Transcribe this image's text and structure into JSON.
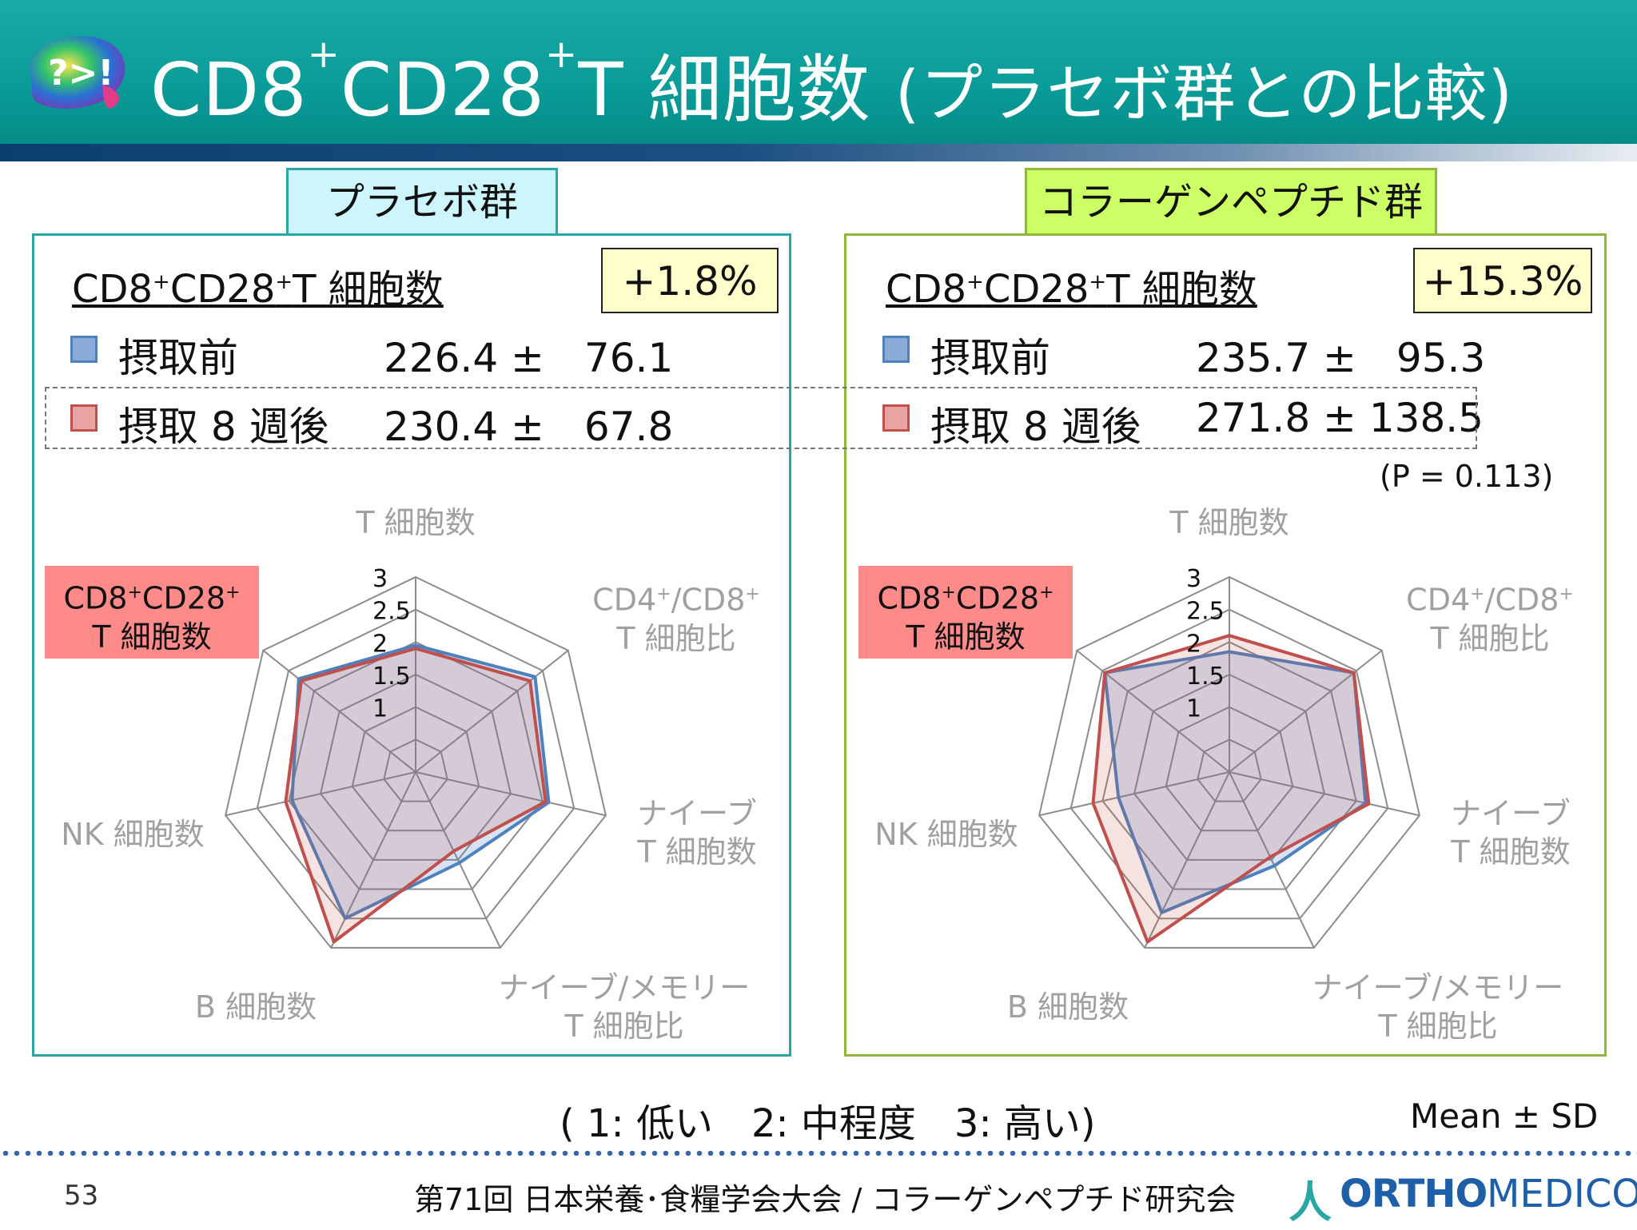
{
  "slide": {
    "title_main": "CD8",
    "title_sup1": "+",
    "title_mid": "CD28",
    "title_sup2": "+",
    "title_rest": "T 細胞数 ",
    "title_paren": "(プラセボ群との比較)",
    "logo_text": "?>!",
    "page_number": "53",
    "footer": "第71回 日本栄養･食糧学会大会 / コラーゲンペプチド研究会",
    "brand_a": "人",
    "brand_ortho": "ORTHO",
    "brand_medico": "MEDICO",
    "scale_note": "( 1: 低い　2: 中程度　3: 高い)",
    "mean_sd": "Mean ± SD",
    "colors": {
      "before": "#4f81bd",
      "after": "#c0504d",
      "placebo_accent": "#2aa7a3",
      "collagen_accent": "#8fb83a"
    }
  },
  "groups": [
    {
      "tab": "プラセボ群",
      "metric_a": "CD8",
      "metric_sup_a": "+",
      "metric_b": "CD28",
      "metric_sup_b": "+",
      "metric_c": "T 細胞数",
      "change": "+1.8%",
      "before_label": "摂取前",
      "after_label": "摂取 8 週後",
      "before_value": "226.4 ±　76.1",
      "after_value": "230.4 ±　67.8",
      "p_value": ""
    },
    {
      "tab": "コラーゲンペプチド群",
      "metric_a": "CD8",
      "metric_sup_a": "+",
      "metric_b": "CD28",
      "metric_sup_b": "+",
      "metric_c": "T 細胞数",
      "change": "+15.3%",
      "before_label": "摂取前",
      "after_label": "摂取 8 週後",
      "before_value": "235.7 ±　95.3",
      "after_value": "271.8 ± 138.5",
      "p_value": "(P = 0.113)"
    }
  ],
  "axis_labels": {
    "t_cells": "T 細胞数",
    "cd4cd8_a": "CD4",
    "cd4cd8_b": "/CD8",
    "cd4cd8_c": "T 細胞比",
    "sup": "+",
    "naive_a": "ナイーブ",
    "naive_b": "T 細胞数",
    "naive_mem_a": "ナイーブ/メモリー",
    "naive_mem_b": "T 細胞比",
    "b_cells": "B 細胞数",
    "nk_cells": "NK 細胞数",
    "highlight_a": "CD8",
    "highlight_b": "CD28",
    "highlight_c": "T 細胞数"
  },
  "chart_data": [
    {
      "type": "radar",
      "group": "プラセボ群",
      "categories": [
        "T 細胞数",
        "CD4+/CD8+ T 細胞比",
        "ナイーブ T 細胞数",
        "ナイーブ/メモリー T 細胞比",
        "B 細胞数",
        "NK 細胞数",
        "CD8+CD28+ T 細胞数"
      ],
      "ticks": [
        "1",
        "1.5",
        "2",
        "2.5",
        "3"
      ],
      "rlim": [
        1,
        3
      ],
      "series": [
        {
          "name": "摂取前",
          "values": [
            1.95,
            2.35,
            2.1,
            1.55,
            2.5,
            1.95,
            2.3
          ]
        },
        {
          "name": "摂取 8 週後",
          "values": [
            1.9,
            2.25,
            2.05,
            1.35,
            2.9,
            2.05,
            2.25
          ]
        }
      ]
    },
    {
      "type": "radar",
      "group": "コラーゲンペプチド群",
      "categories": [
        "T 細胞数",
        "CD4+/CD8+ T 細胞比",
        "ナイーブ T 細胞数",
        "ナイーブ/メモリー T 細胞比",
        "B 細胞数",
        "NK 細胞数",
        "CD8+CD28+ T 細胞数"
      ],
      "ticks": [
        "1",
        "1.5",
        "2",
        "2.5",
        "3"
      ],
      "rlim": [
        1,
        3
      ],
      "series": [
        {
          "name": "摂取前",
          "values": [
            1.85,
            2.45,
            2.15,
            1.6,
            2.4,
            1.75,
            2.45
          ]
        },
        {
          "name": "摂取 8 週後",
          "values": [
            2.1,
            2.45,
            2.2,
            1.45,
            2.9,
            2.15,
            2.45
          ]
        }
      ]
    }
  ]
}
